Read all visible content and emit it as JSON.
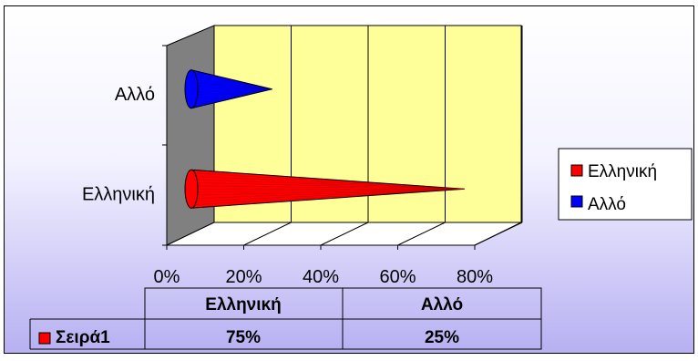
{
  "chart_data": {
    "type": "bar",
    "orientation": "horizontal",
    "style": "3d-cone",
    "categories": [
      "Ελληνική",
      "Αλλό"
    ],
    "values": [
      75,
      25
    ],
    "unit": "%",
    "x_ticks": [
      "0%",
      "20%",
      "40%",
      "60%",
      "80%"
    ],
    "xlim": [
      0,
      80
    ],
    "grid": true,
    "legend": {
      "position": "right",
      "entries": [
        {
          "label": "Ελληνική",
          "color": "#ff0000"
        },
        {
          "label": "Αλλό",
          "color": "#0000ff"
        }
      ]
    },
    "data_table": {
      "headers": [
        "Ελληνική",
        "Αλλό"
      ],
      "row_label": "Σειρά1",
      "cells": [
        "75%",
        "25%"
      ]
    }
  },
  "colors": {
    "plot_wall": "#ffff99",
    "side_wall": "#808080",
    "bar_colors": [
      "#ff0000",
      "#0000ff"
    ]
  }
}
